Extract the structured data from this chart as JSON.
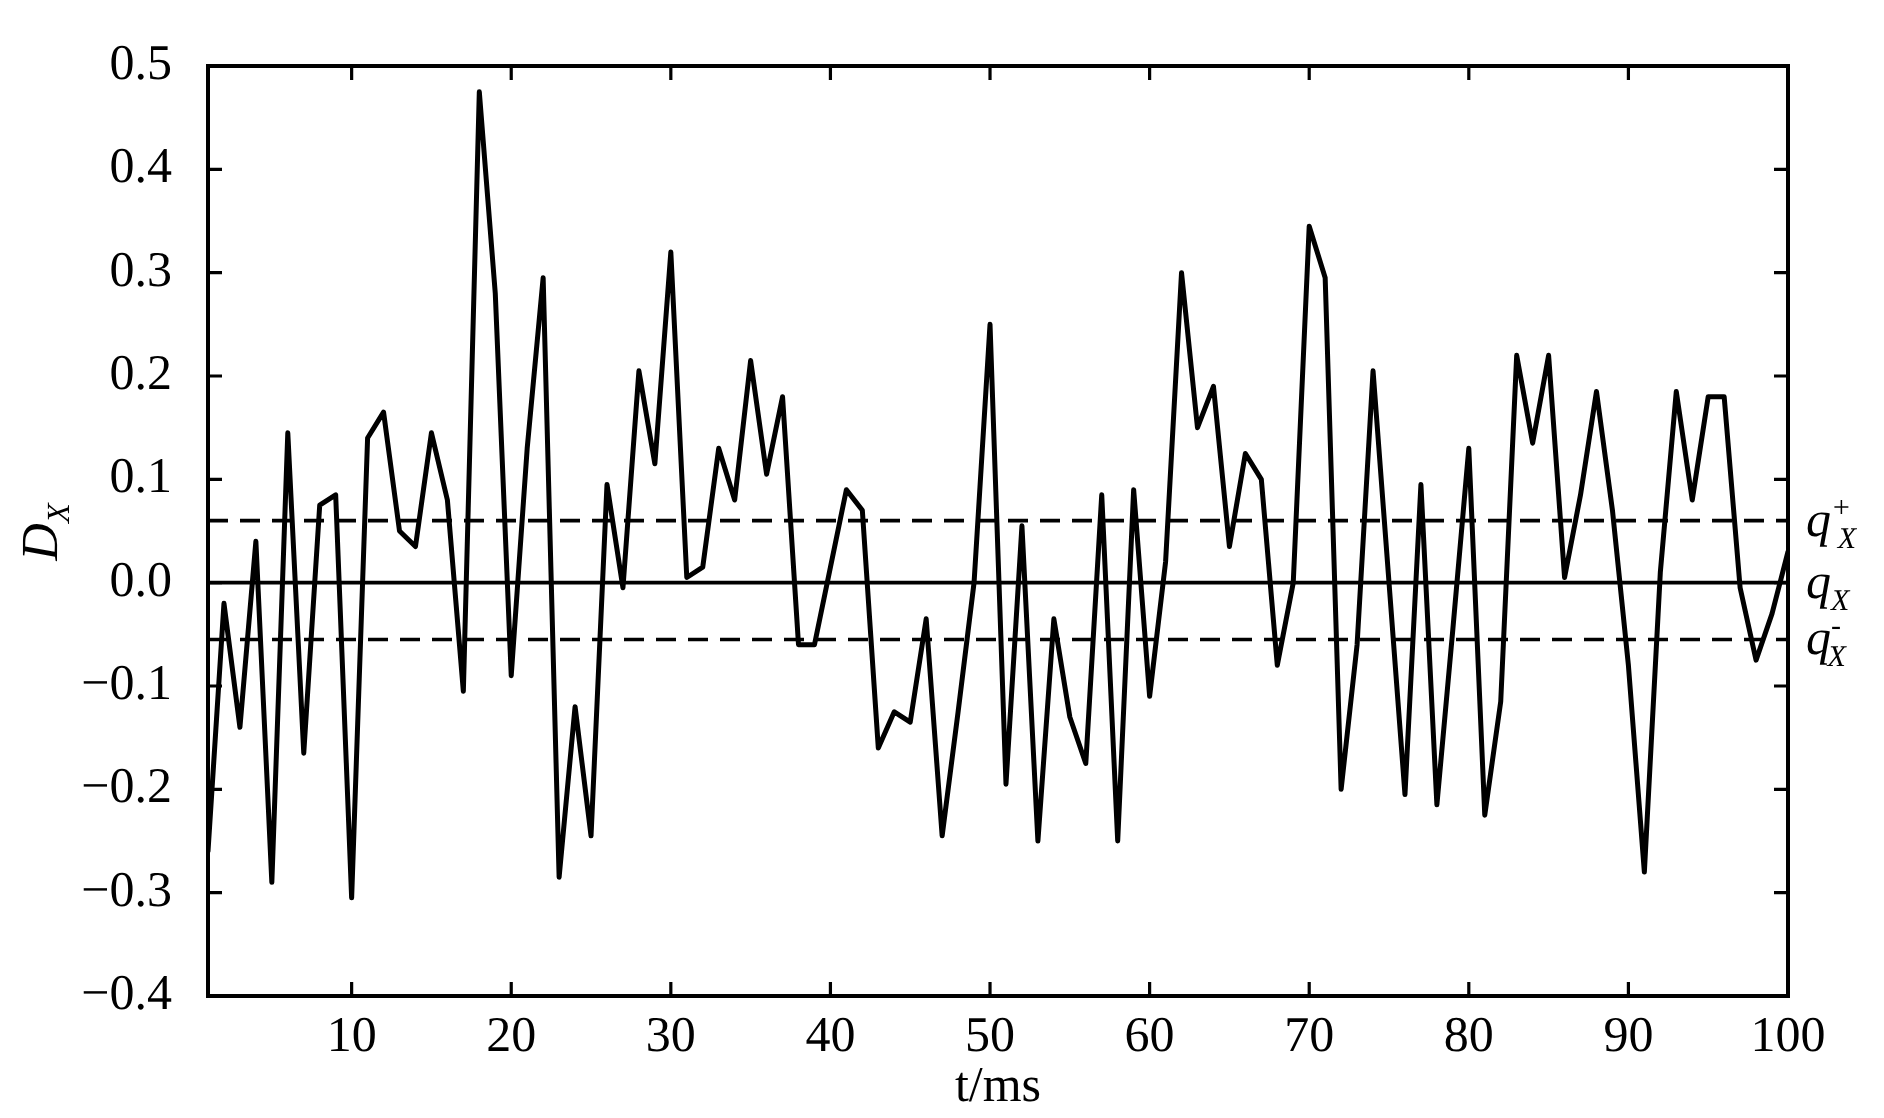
{
  "chart_data": {
    "type": "line",
    "xlabel": "t/ms",
    "ylabel": "D$_{X}$",
    "x": [
      1,
      2,
      3,
      4,
      5,
      6,
      7,
      8,
      9,
      10,
      11,
      12,
      13,
      14,
      15,
      16,
      17,
      18,
      19,
      20,
      21,
      22,
      23,
      24,
      25,
      26,
      27,
      28,
      29,
      30,
      31,
      32,
      33,
      34,
      35,
      36,
      37,
      38,
      39,
      40,
      41,
      42,
      43,
      44,
      45,
      46,
      47,
      48,
      49,
      50,
      51,
      52,
      53,
      54,
      55,
      56,
      57,
      58,
      59,
      60,
      61,
      62,
      63,
      64,
      65,
      66,
      67,
      68,
      69,
      70,
      71,
      72,
      73,
      74,
      75,
      76,
      77,
      78,
      79,
      80,
      81,
      82,
      83,
      84,
      85,
      86,
      87,
      88,
      89,
      90,
      91,
      92,
      93,
      94,
      95,
      96,
      97,
      98,
      99,
      100
    ],
    "series": [
      {
        "color": "#000000",
        "values": [
          -0.26,
          -0.02,
          -0.14,
          0.04,
          -0.29,
          0.145,
          -0.165,
          0.075,
          0.085,
          -0.305,
          0.14,
          0.165,
          0.05,
          0.035,
          0.145,
          0.08,
          -0.105,
          0.475,
          0.28,
          -0.09,
          0.13,
          0.295,
          -0.285,
          -0.12,
          -0.245,
          0.095,
          -0.005,
          0.205,
          0.115,
          0.32,
          0.005,
          0.015,
          0.13,
          0.08,
          0.215,
          0.105,
          0.18,
          -0.06,
          -0.06,
          0.015,
          0.09,
          0.07,
          -0.16,
          -0.125,
          -0.135,
          -0.035,
          -0.245,
          -0.125,
          0.0,
          0.25,
          -0.195,
          0.055,
          -0.25,
          -0.035,
          -0.13,
          -0.175,
          0.085,
          -0.25,
          0.09,
          -0.11,
          0.02,
          0.3,
          0.15,
          0.19,
          0.035,
          0.125,
          0.1,
          -0.08,
          0.0,
          0.345,
          0.295,
          -0.2,
          -0.06,
          0.205,
          0.0,
          -0.205,
          0.095,
          -0.215,
          -0.045,
          0.13,
          -0.225,
          -0.115,
          0.22,
          0.135,
          0.22,
          0.005,
          0.085,
          0.185,
          0.07,
          -0.08,
          -0.28,
          0.01,
          0.185,
          0.08,
          0.18,
          0.18,
          -0.005,
          -0.075,
          -0.03,
          0.03
        ]
      }
    ],
    "xlim": [
      1,
      100
    ],
    "xticks": [
      10,
      20,
      30,
      40,
      50,
      60,
      70,
      80,
      90,
      100
    ],
    "ylim": [
      -0.4,
      0.5
    ],
    "yticks": [
      {
        "value": -0.4,
        "label": "−0.4"
      },
      {
        "value": -0.3,
        "label": "−0.3"
      },
      {
        "value": -0.2,
        "label": "−0.2"
      },
      {
        "value": -0.1,
        "label": "−0.1"
      },
      {
        "value": 0,
        "label": "0.0"
      },
      0.1,
      0.2,
      0.3,
      0.4,
      0.5
    ],
    "ref_lines": [
      {
        "axis": "y",
        "value": 0.06,
        "label": "q$^{+}$$_{X}$",
        "line_style": "dashed",
        "color": "#000000"
      },
      {
        "axis": "y",
        "value": 0,
        "label": "q$_{X}$",
        "line_style": "solid",
        "color": "#000000"
      },
      {
        "axis": "y",
        "value": -0.055,
        "label": "q$^{-}$$_{X}$",
        "line_style": "dashed",
        "color": "#000000"
      }
    ],
    "marker": "none",
    "line_style": "solid"
  }
}
